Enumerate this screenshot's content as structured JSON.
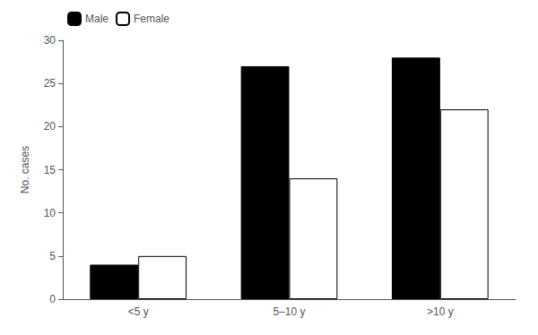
{
  "chart_data": {
    "type": "bar",
    "categories": [
      "<5 y",
      "5–10 y",
      ">10 y"
    ],
    "series": [
      {
        "name": "Male",
        "color": "#000000",
        "values": [
          4,
          27,
          28
        ]
      },
      {
        "name": "Female",
        "color": "#ffffff",
        "values": [
          5,
          14,
          22
        ]
      }
    ],
    "ylabel": "No. cases",
    "ylim": [
      0,
      30
    ],
    "yticks": [
      0,
      5,
      10,
      15,
      20,
      25,
      30
    ],
    "grid": false,
    "legend": "upper left"
  }
}
